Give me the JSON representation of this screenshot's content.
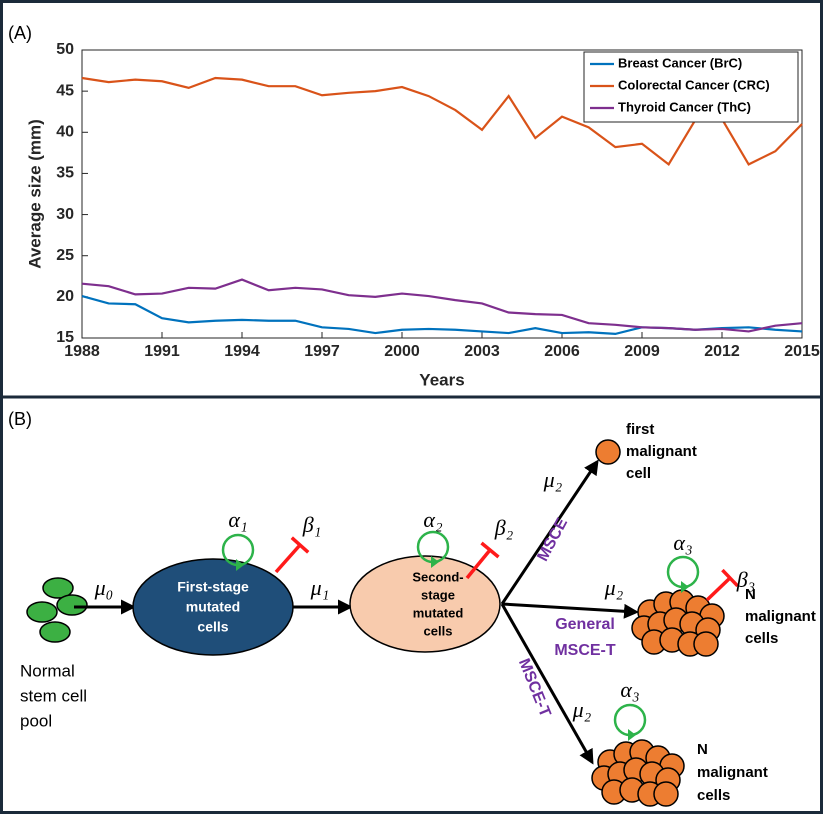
{
  "chart_data": {
    "type": "line",
    "panel_label": "(A)",
    "x_label": "Years",
    "y_label": "Average size (mm)",
    "x": [
      1988,
      1989,
      1990,
      1991,
      1992,
      1993,
      1994,
      1995,
      1996,
      1997,
      1998,
      1999,
      2000,
      2001,
      2002,
      2003,
      2004,
      2005,
      2006,
      2007,
      2008,
      2009,
      2010,
      2011,
      2012,
      2013,
      2014,
      2015
    ],
    "series": [
      {
        "name": "Breast Cancer (BrC)",
        "color": "#0072bd",
        "values": [
          20.1,
          19.2,
          19.1,
          17.4,
          16.9,
          17.1,
          17.2,
          17.1,
          17.1,
          16.3,
          16.1,
          15.6,
          16.0,
          16.1,
          16.0,
          15.8,
          15.6,
          16.2,
          15.6,
          15.7,
          15.5,
          16.3,
          16.2,
          16.0,
          16.2,
          16.3,
          16.0,
          15.8
        ]
      },
      {
        "name": "Colorectal Cancer (CRC)",
        "color": "#d95319",
        "values": [
          46.6,
          46.1,
          46.4,
          46.2,
          45.4,
          46.6,
          46.4,
          45.6,
          45.6,
          44.5,
          44.8,
          45.0,
          45.5,
          44.4,
          42.7,
          40.3,
          44.4,
          39.3,
          41.9,
          40.6,
          38.2,
          38.6,
          36.1,
          41.5,
          41.6,
          36.1,
          37.7,
          41.0
        ]
      },
      {
        "name": "Thyroid Cancer (ThC)",
        "color": "#7e2f8e",
        "values": [
          21.6,
          21.3,
          20.3,
          20.4,
          21.1,
          21.0,
          22.1,
          20.8,
          21.1,
          20.9,
          20.2,
          20.0,
          20.4,
          20.1,
          19.6,
          19.2,
          18.1,
          17.9,
          17.8,
          16.8,
          16.6,
          16.3,
          16.2,
          16.0,
          16.1,
          15.8,
          16.5,
          16.8
        ]
      }
    ],
    "xlim": [
      1988,
      2015
    ],
    "xticks": [
      1988,
      1991,
      1994,
      1997,
      2000,
      2003,
      2006,
      2009,
      2012,
      2015
    ],
    "ylim": [
      15,
      50
    ],
    "yticks": [
      15,
      20,
      25,
      30,
      35,
      40,
      45,
      50
    ],
    "grid": false,
    "legend": "upper right"
  },
  "diagram": {
    "panel_label": "(B)",
    "stem_pool": [
      "Normal",
      "stem cell",
      "pool"
    ],
    "stage1": [
      "First-stage",
      "mutated",
      "cells"
    ],
    "stage2": [
      "Second-",
      "stage",
      "mutated",
      "cells"
    ],
    "first_malignant": [
      "first",
      "malignant",
      "cell"
    ],
    "n_malignant_general": [
      "N",
      "malignant",
      "cells"
    ],
    "n_malignant_t": [
      "N",
      "malignant",
      "cells"
    ],
    "rates": {
      "mu0": "μ₀",
      "mu1": "μ₁",
      "mu2_msce": "μ₂",
      "mu2_general": "μ₂",
      "mu2_t": "μ₂",
      "alpha1": "α₁",
      "beta1": "β₁",
      "alpha2": "α₂",
      "beta2": "β₂",
      "alpha3_general": "α₃",
      "beta3": "β₃",
      "alpha3_t": "α₃"
    },
    "models": {
      "msce": "MSCE",
      "general": [
        "General",
        "MSCE-T"
      ],
      "msce_t": "MSCE-T"
    }
  }
}
